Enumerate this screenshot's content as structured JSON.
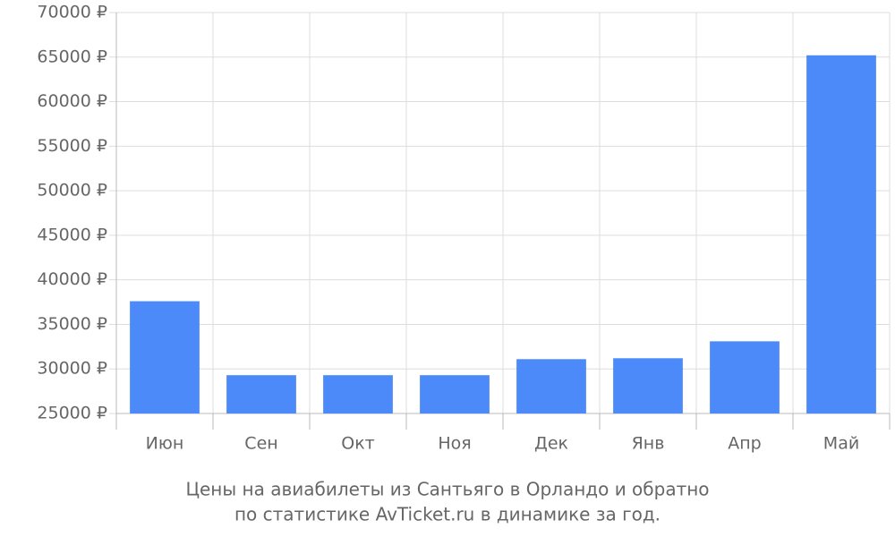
{
  "chart_data": {
    "type": "bar",
    "title": "Цены на авиабилеты из Сантьяго в Орландо и обратно",
    "subtitle": "по статистике AvTicket.ru в динамике за год.",
    "categories": [
      "Июн",
      "Сен",
      "Окт",
      "Ноя",
      "Дек",
      "Янв",
      "Апр",
      "Май"
    ],
    "values": [
      37600,
      29300,
      29300,
      29300,
      31100,
      31200,
      33100,
      65200
    ],
    "color": "#4d8af9",
    "ylim": [
      25000,
      70000
    ],
    "yticks": [
      {
        "value": 25000,
        "label": "25000 ₽"
      },
      {
        "value": 30000,
        "label": "30000 ₽"
      },
      {
        "value": 35000,
        "label": "35000 ₽"
      },
      {
        "value": 40000,
        "label": "40000 ₽"
      },
      {
        "value": 45000,
        "label": "45000 ₽"
      },
      {
        "value": 50000,
        "label": "50000 ₽"
      },
      {
        "value": 55000,
        "label": "55000 ₽"
      },
      {
        "value": 60000,
        "label": "60000 ₽"
      },
      {
        "value": 65000,
        "label": "65000 ₽"
      },
      {
        "value": 70000,
        "label": "70000 ₽"
      }
    ],
    "grid": true
  }
}
